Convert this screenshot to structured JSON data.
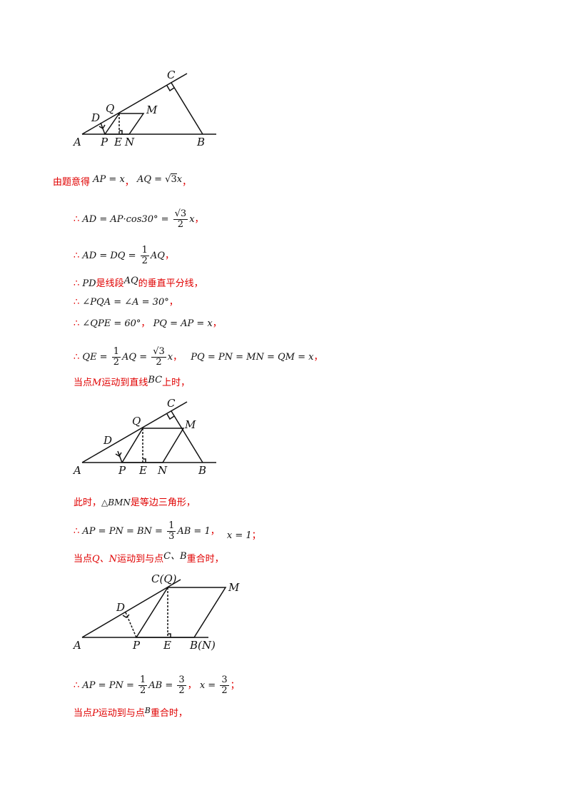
{
  "figures": {
    "fig1": {
      "labels": {
        "A": "A",
        "B": "B",
        "C": "C",
        "D": "D",
        "Q": "Q",
        "M": "M",
        "P": "P",
        "E": "E",
        "N": "N"
      }
    },
    "fig2": {
      "labels": {
        "A": "A",
        "B": "B",
        "C": "C",
        "D": "D",
        "Q": "Q",
        "M": "M",
        "P": "P",
        "E": "E",
        "N": "N"
      }
    },
    "fig3": {
      "labels": {
        "A": "A",
        "CQ": "C(Q)",
        "M": "M",
        "D": "D",
        "P": "P",
        "E": "E",
        "BN": "B(N)"
      }
    }
  },
  "lines": {
    "l1_text": "由题意得",
    "l1_m1": "AP = x",
    "l1_m2": "AQ = ",
    "l1_m2b": "3",
    "l1_m2c": "x",
    "l2_m": "AD = AP·cos30° =",
    "l2_num": "√3",
    "l2_den": "2",
    "l2_tail": "x",
    "l3_m": "AD = DQ =",
    "l3_num": "1",
    "l3_den": "2",
    "l3_tail": "AQ",
    "l4_m1": "PD",
    "l4_t1": "是线段",
    "l4_m2": "AQ",
    "l4_t2": "的垂直平分线",
    "l5_m": "∠PQA = ∠A = 30°",
    "l6_m1": "∠QPE = 60°",
    "l6_m2": "PQ = AP = x",
    "l7_m1": "QE =",
    "l7_num1": "1",
    "l7_den1": "2",
    "l7_m1b": "AQ =",
    "l7_num2": "√3",
    "l7_den2": "2",
    "l7_m1c": "x",
    "l7_m2": "PQ = PN = MN = QM = x",
    "l8_t1": "当点",
    "l8_m1": "M",
    "l8_t2": "运动到直线",
    "l8_m2": "BC",
    "l8_t3": "上时，",
    "l9_t1": "此时，",
    "l9_m": "△BMN",
    "l9_t2": "是等边三角形，",
    "l10_m1": "AP = PN = BN =",
    "l10_num": "1",
    "l10_den": "3",
    "l10_m1b": "AB = 1",
    "l10_m2": "x = 1",
    "l11_t1": "当点",
    "l11_m1": "Q、N",
    "l11_t2": "运动到与点",
    "l11_m2": "C、B",
    "l11_t3": "重合时，",
    "l12_m1": "AP = PN =",
    "l12_num1": "1",
    "l12_den1": "2",
    "l12_m1b": "AB =",
    "l12_num2": "3",
    "l12_den2": "2",
    "l12_m2": "x =",
    "l12_num3": "3",
    "l12_den3": "2",
    "l13_t1": "当点",
    "l13_m1": "P",
    "l13_t2": "运动到与点",
    "l13_m2": "B",
    "l13_t3": "重合时，"
  }
}
